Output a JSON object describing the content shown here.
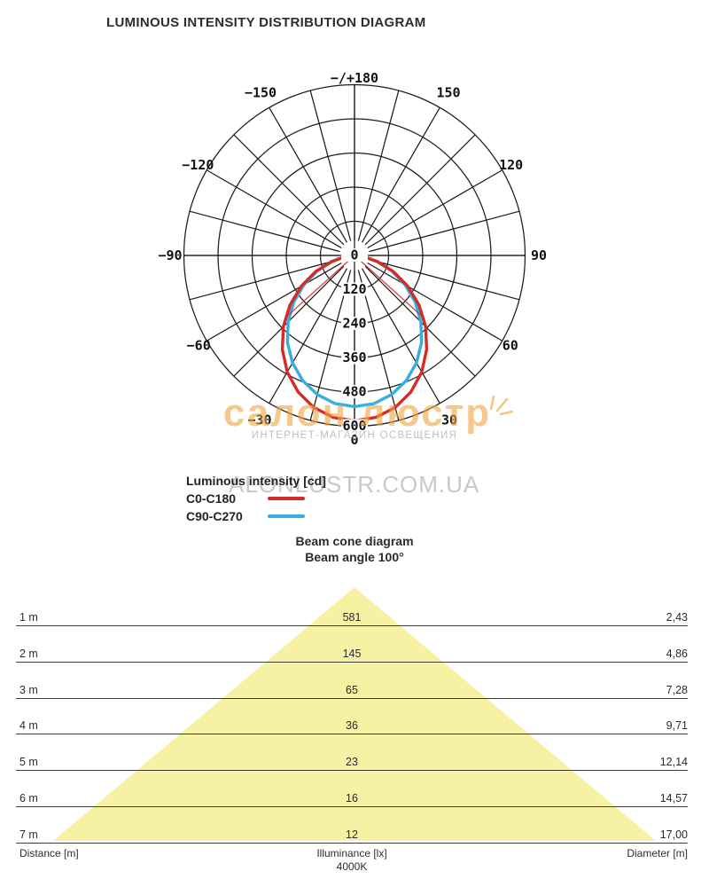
{
  "title": "LUMINOUS INTENSITY DISTRIBUTION DIAGRAM",
  "watermark": {
    "brand": "салон люстр",
    "tagline": "ИНТЕРНЕТ-МАГАЗИН ОСВЕЩЕНИЯ",
    "domain": "ALONLUSTR.COM.UA",
    "brand_color": "#F0A43E",
    "tagline_color": "#C3BEBE",
    "domain_color": "#CCC8C8"
  },
  "legend": {
    "title": "Luminous intensity [cd]",
    "items": [
      {
        "label": "C0-C180",
        "color": "#D32B26"
      },
      {
        "label": "C90-C270",
        "color": "#36AFE0"
      }
    ]
  },
  "beam": {
    "title": "Beam cone diagram",
    "subtitle": "Beam angle 100°",
    "footer": {
      "left": "Distance [m]",
      "center": "Illuminance [lx]",
      "center_sub": "4000K",
      "right": "Diameter [m]"
    },
    "cone_color": "#F7F1A3"
  },
  "chart_data": [
    {
      "type": "polar-line",
      "title": "LUMINOUS INTENSITY DISTRIBUTION DIAGRAM",
      "units": "cd",
      "orientation": "0° at nadir (bottom), -/+180° at top, negative angles left",
      "grid": {
        "spoke_step_deg": 15,
        "rings": 5,
        "line_color": "#1c1c1c"
      },
      "radial_ticks": [
        0,
        120,
        240,
        360,
        480,
        600
      ],
      "radial_max": 600,
      "angle_labels": [
        {
          "text": "−/+180",
          "angle": 180
        },
        {
          "text": "−150",
          "angle": -150
        },
        {
          "text": "150",
          "angle": 150
        },
        {
          "text": "−120",
          "angle": -120
        },
        {
          "text": "120",
          "angle": 120
        },
        {
          "text": "−90",
          "angle": -90
        },
        {
          "text": "90",
          "angle": 90
        },
        {
          "text": "−60",
          "angle": -60
        },
        {
          "text": "60",
          "angle": 60
        },
        {
          "text": "−30",
          "angle": -30
        },
        {
          "text": "30",
          "angle": 30
        },
        {
          "text": "0",
          "angle": 0
        }
      ],
      "series": [
        {
          "name": "C0-C180",
          "color": "#D32B26",
          "angles_deg": [
            -90,
            -82.5,
            -75,
            -67.5,
            -60,
            -52.5,
            -45,
            -37.5,
            -30,
            -22.5,
            -15,
            -7.5,
            0,
            7.5,
            15,
            22.5,
            30,
            37.5,
            45,
            52.5,
            60,
            67.5,
            75,
            82.5,
            90
          ],
          "values_cd": [
            0,
            32,
            84,
            147,
            216,
            286,
            354,
            417,
            473,
            519,
            553,
            574,
            581,
            574,
            553,
            519,
            473,
            417,
            354,
            286,
            216,
            147,
            84,
            32,
            0
          ],
          "closure_chords": [
            [
              -48,
              327
            ],
            [
              48,
              327
            ]
          ]
        },
        {
          "name": "C90-C270",
          "color": "#36AFE0",
          "angles_deg": [
            -90,
            -82.5,
            -75,
            -67.5,
            -60,
            -52.5,
            -45,
            -37.5,
            -30,
            -22.5,
            -15,
            -7.5,
            0,
            7.5,
            15,
            22.5,
            30,
            37.5,
            45,
            52.5,
            60,
            67.5,
            75,
            82.5,
            90
          ],
          "values_cd": [
            0,
            33,
            83,
            142,
            205,
            269,
            330,
            387,
            436,
            476,
            506,
            525,
            531,
            525,
            506,
            476,
            436,
            387,
            330,
            269,
            205,
            142,
            83,
            33,
            0
          ]
        }
      ],
      "peak_intensity_cd": 581
    },
    {
      "type": "beam-cone",
      "title": "Beam cone diagram",
      "subtitle": "Beam angle 100°",
      "beam_angle_deg": 100,
      "cct": "4000K",
      "columns": [
        "Distance [m]",
        "Illuminance [lx]",
        "Diameter [m]"
      ],
      "distance_labels": [
        "1 m",
        "2 m",
        "3 m",
        "4 m",
        "5 m",
        "6 m",
        "7 m"
      ],
      "distances_m": [
        1,
        2,
        3,
        4,
        5,
        6,
        7
      ],
      "illuminance_labels": [
        "581",
        "145",
        "65",
        "36",
        "23",
        "16",
        "12"
      ],
      "illuminance_lx": [
        581,
        145,
        65,
        36,
        23,
        16,
        12
      ],
      "diameter_labels": [
        "2,43",
        "4,86",
        "7,28",
        "9,71",
        "12,14",
        "14,57",
        "17,00"
      ],
      "diameter_m": [
        2.43,
        4.86,
        7.28,
        9.71,
        12.14,
        14.57,
        17.0
      ]
    }
  ]
}
